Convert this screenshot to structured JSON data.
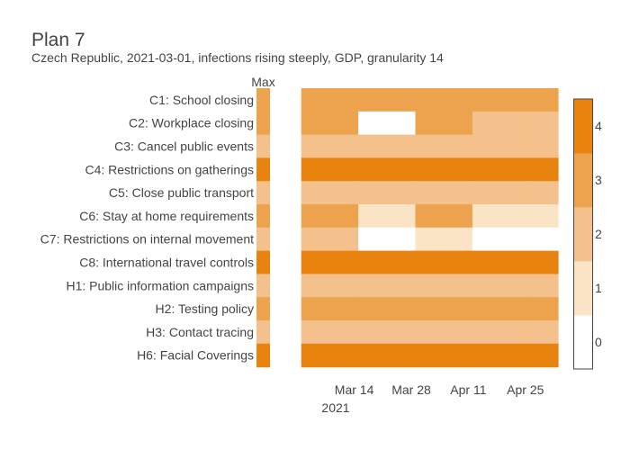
{
  "chart_data": {
    "type": "heatmap",
    "title": "Plan 7",
    "subtitle": "Czech Republic, 2021-03-01, infections rising steeply, GDP, granularity 14",
    "max_column_label": "Max",
    "rows": [
      "C1: School closing",
      "C2: Workplace closing",
      "C3: Cancel public events",
      "C4: Restrictions on gatherings",
      "C5: Close public transport",
      "C6: Stay at home requirements",
      "C7: Restrictions on internal movement",
      "C8: International travel controls",
      "H1: Public information campaigns",
      "H2: Testing policy",
      "H3: Contact tracing",
      "H6: Facial Coverings"
    ],
    "max_values": [
      3,
      3,
      2,
      4,
      2,
      3,
      2,
      4,
      2,
      3,
      2,
      4
    ],
    "periods": [
      "2021-03-01",
      "2021-03-15",
      "2021-03-29",
      "2021-04-12",
      "2021-04-26"
    ],
    "values": [
      [
        3,
        3,
        3,
        3,
        3
      ],
      [
        3,
        0,
        3,
        2,
        2
      ],
      [
        2,
        2,
        2,
        2,
        2
      ],
      [
        4,
        4,
        4,
        4,
        4
      ],
      [
        2,
        2,
        2,
        2,
        2
      ],
      [
        3,
        1,
        3,
        1,
        1
      ],
      [
        2,
        0,
        1,
        0,
        0
      ],
      [
        4,
        4,
        4,
        4,
        4
      ],
      [
        2,
        2,
        2,
        2,
        2
      ],
      [
        3,
        3,
        3,
        3,
        3
      ],
      [
        2,
        2,
        2,
        2,
        2
      ],
      [
        4,
        4,
        4,
        4,
        4
      ]
    ],
    "x_ticks": [
      "Mar 14",
      "Mar 28",
      "Apr 11",
      "Apr 25"
    ],
    "x_tick_dates": [
      "2021-03-14",
      "2021-03-28",
      "2021-04-11",
      "2021-04-25"
    ],
    "x_year_label": "2021",
    "x_range": [
      "2021-02-22",
      "2021-05-03"
    ],
    "colorbar": {
      "ticks": [
        "0",
        "1",
        "2",
        "3",
        "4"
      ],
      "range": [
        -0.5,
        4.5
      ],
      "colors": [
        "#ffffff",
        "#fbe3c6",
        "#f4c08b",
        "#eda24d",
        "#e8830f"
      ]
    },
    "grid": false
  }
}
